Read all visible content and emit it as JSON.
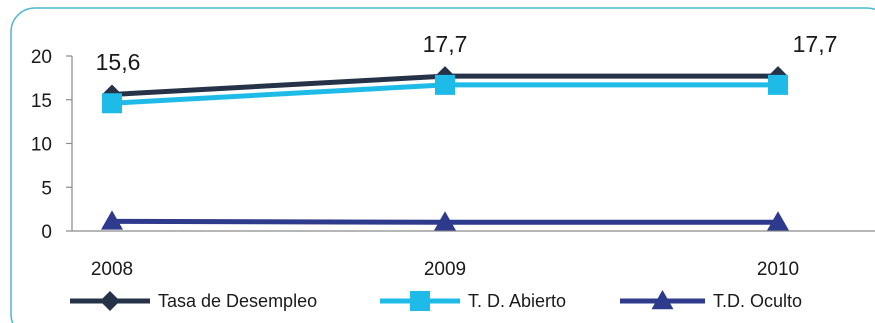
{
  "colors": {
    "frame": "#4bb8cf",
    "axis": "#8a8a8a",
    "tasa": "#253247",
    "abierto": "#1fbbe8",
    "oculto": "#2e3a8c"
  },
  "chart_data": {
    "type": "line",
    "categories": [
      "2008",
      "2009",
      "2010"
    ],
    "ylim": [
      0,
      20
    ],
    "yticks": [
      "0",
      "5",
      "10",
      "15",
      "20"
    ],
    "grid": false,
    "legend_position": "bottom",
    "series": [
      {
        "name": "Tasa de Desempleo",
        "values": [
          15.6,
          17.7,
          17.7
        ],
        "marker": "diamond",
        "color_key": "tasa",
        "labels": [
          "15,6",
          "17,7",
          "17,7"
        ]
      },
      {
        "name": "T. D. Abierto",
        "values": [
          14.6,
          16.7,
          16.7
        ],
        "marker": "square",
        "color_key": "abierto"
      },
      {
        "name": "T.D. Oculto",
        "values": [
          1.1,
          1.0,
          1.0
        ],
        "marker": "triangle",
        "color_key": "oculto"
      }
    ]
  }
}
